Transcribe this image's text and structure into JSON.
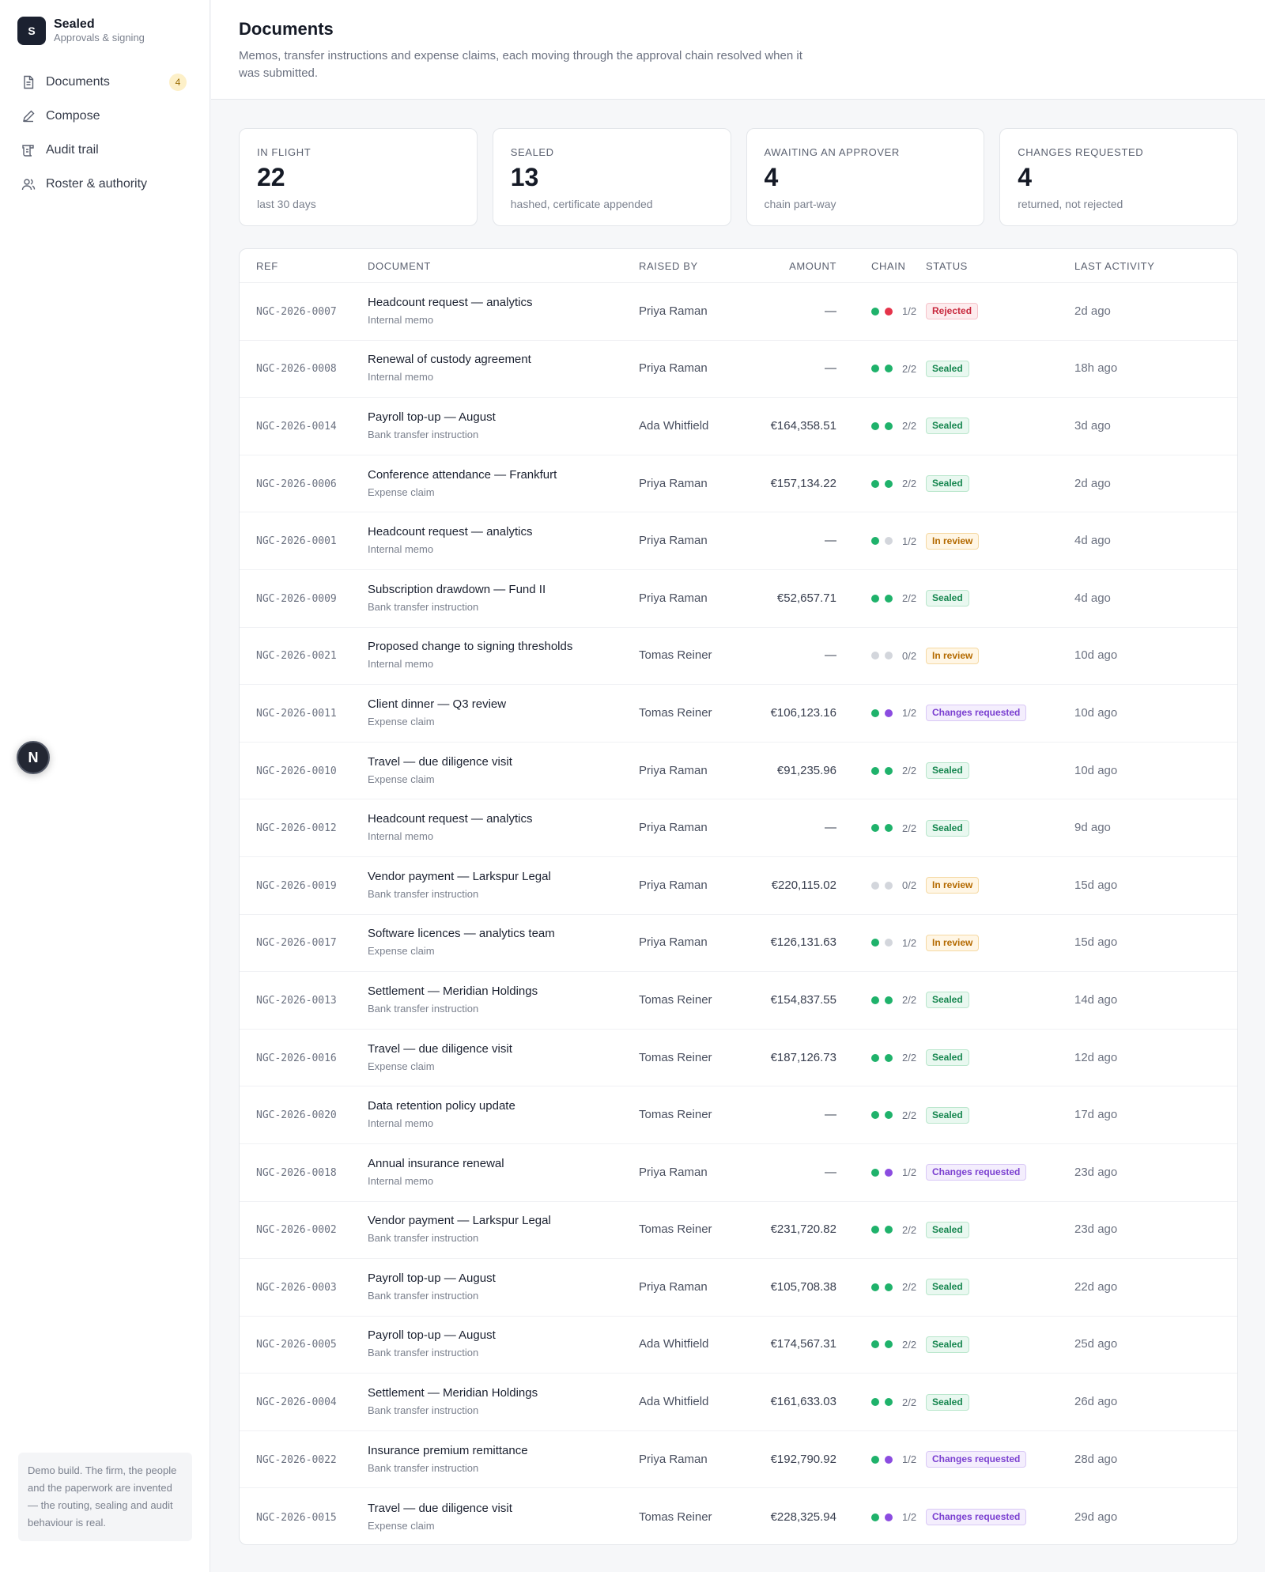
{
  "brand": {
    "logo_letter": "S",
    "name": "Sealed",
    "subtitle": "Approvals & signing"
  },
  "nav": {
    "items": [
      {
        "label": "Documents",
        "icon": "document-icon",
        "badge": "4"
      },
      {
        "label": "Compose",
        "icon": "pen-icon"
      },
      {
        "label": "Audit trail",
        "icon": "scroll-icon"
      },
      {
        "label": "Roster & authority",
        "icon": "users-icon"
      }
    ]
  },
  "avatar_letter": "N",
  "demo_note": "Demo build. The firm, the people and the paperwork are invented — the routing, sealing and audit behaviour is real.",
  "header": {
    "title": "Documents",
    "description": "Memos, transfer instructions and expense claims, each moving through the approval chain resolved when it was submitted."
  },
  "stats": [
    {
      "label": "IN FLIGHT",
      "value": "22",
      "sub": "last 30 days"
    },
    {
      "label": "SEALED",
      "value": "13",
      "sub": "hashed, certificate appended"
    },
    {
      "label": "AWAITING AN APPROVER",
      "value": "4",
      "sub": "chain part-way"
    },
    {
      "label": "CHANGES REQUESTED",
      "value": "4",
      "sub": "returned, not rejected"
    }
  ],
  "colors": {
    "dot_green": "#1fb26b",
    "dot_red": "#e5334a",
    "dot_grey": "#d3d6dc",
    "dot_purple": "#8b4ce0",
    "status_rejected": {
      "fg": "#c8283d",
      "bg": "#fdecee",
      "border": "#f6c3ca"
    },
    "status_sealed": {
      "fg": "#16864f",
      "bg": "#e9f8f0",
      "border": "#b9e6cc"
    },
    "status_review": {
      "fg": "#b46a00",
      "bg": "#fff6e5",
      "border": "#f5d9a3"
    },
    "status_changes": {
      "fg": "#7a3fd0",
      "bg": "#f4eefd",
      "border": "#d9c8f6"
    }
  },
  "table": {
    "columns": [
      "REF",
      "DOCUMENT",
      "RAISED BY",
      "AMOUNT",
      "CHAIN",
      "STATUS",
      "LAST ACTIVITY"
    ],
    "rows": [
      {
        "ref": "NGC-2026-0007",
        "title": "Headcount request — analytics",
        "type": "Internal memo",
        "by": "Priya Raman",
        "amount": "—",
        "dots": [
          "green",
          "red"
        ],
        "chain": "1/2",
        "status": "Rejected",
        "status_kind": "rejected",
        "last": "2d ago"
      },
      {
        "ref": "NGC-2026-0008",
        "title": "Renewal of custody agreement",
        "type": "Internal memo",
        "by": "Priya Raman",
        "amount": "—",
        "dots": [
          "green",
          "green"
        ],
        "chain": "2/2",
        "status": "Sealed",
        "status_kind": "sealed",
        "last": "18h ago"
      },
      {
        "ref": "NGC-2026-0014",
        "title": "Payroll top-up — August",
        "type": "Bank transfer instruction",
        "by": "Ada Whitfield",
        "amount": "€164,358.51",
        "dots": [
          "green",
          "green"
        ],
        "chain": "2/2",
        "status": "Sealed",
        "status_kind": "sealed",
        "last": "3d ago"
      },
      {
        "ref": "NGC-2026-0006",
        "title": "Conference attendance — Frankfurt",
        "type": "Expense claim",
        "by": "Priya Raman",
        "amount": "€157,134.22",
        "dots": [
          "green",
          "green"
        ],
        "chain": "2/2",
        "status": "Sealed",
        "status_kind": "sealed",
        "last": "2d ago"
      },
      {
        "ref": "NGC-2026-0001",
        "title": "Headcount request — analytics",
        "type": "Internal memo",
        "by": "Priya Raman",
        "amount": "—",
        "dots": [
          "green",
          "grey"
        ],
        "chain": "1/2",
        "status": "In review",
        "status_kind": "review",
        "last": "4d ago"
      },
      {
        "ref": "NGC-2026-0009",
        "title": "Subscription drawdown — Fund II",
        "type": "Bank transfer instruction",
        "by": "Priya Raman",
        "amount": "€52,657.71",
        "dots": [
          "green",
          "green"
        ],
        "chain": "2/2",
        "status": "Sealed",
        "status_kind": "sealed",
        "last": "4d ago"
      },
      {
        "ref": "NGC-2026-0021",
        "title": "Proposed change to signing thresholds",
        "type": "Internal memo",
        "by": "Tomas Reiner",
        "amount": "—",
        "dots": [
          "grey",
          "grey"
        ],
        "chain": "0/2",
        "status": "In review",
        "status_kind": "review",
        "last": "10d ago"
      },
      {
        "ref": "NGC-2026-0011",
        "title": "Client dinner — Q3 review",
        "type": "Expense claim",
        "by": "Tomas Reiner",
        "amount": "€106,123.16",
        "dots": [
          "green",
          "purple"
        ],
        "chain": "1/2",
        "status": "Changes requested",
        "status_kind": "changes",
        "last": "10d ago"
      },
      {
        "ref": "NGC-2026-0010",
        "title": "Travel — due diligence visit",
        "type": "Expense claim",
        "by": "Priya Raman",
        "amount": "€91,235.96",
        "dots": [
          "green",
          "green"
        ],
        "chain": "2/2",
        "status": "Sealed",
        "status_kind": "sealed",
        "last": "10d ago"
      },
      {
        "ref": "NGC-2026-0012",
        "title": "Headcount request — analytics",
        "type": "Internal memo",
        "by": "Priya Raman",
        "amount": "—",
        "dots": [
          "green",
          "green"
        ],
        "chain": "2/2",
        "status": "Sealed",
        "status_kind": "sealed",
        "last": "9d ago"
      },
      {
        "ref": "NGC-2026-0019",
        "title": "Vendor payment — Larkspur Legal",
        "type": "Bank transfer instruction",
        "by": "Priya Raman",
        "amount": "€220,115.02",
        "dots": [
          "grey",
          "grey"
        ],
        "chain": "0/2",
        "status": "In review",
        "status_kind": "review",
        "last": "15d ago"
      },
      {
        "ref": "NGC-2026-0017",
        "title": "Software licences — analytics team",
        "type": "Expense claim",
        "by": "Priya Raman",
        "amount": "€126,131.63",
        "dots": [
          "green",
          "grey"
        ],
        "chain": "1/2",
        "status": "In review",
        "status_kind": "review",
        "last": "15d ago"
      },
      {
        "ref": "NGC-2026-0013",
        "title": "Settlement — Meridian Holdings",
        "type": "Bank transfer instruction",
        "by": "Tomas Reiner",
        "amount": "€154,837.55",
        "dots": [
          "green",
          "green"
        ],
        "chain": "2/2",
        "status": "Sealed",
        "status_kind": "sealed",
        "last": "14d ago"
      },
      {
        "ref": "NGC-2026-0016",
        "title": "Travel — due diligence visit",
        "type": "Expense claim",
        "by": "Tomas Reiner",
        "amount": "€187,126.73",
        "dots": [
          "green",
          "green"
        ],
        "chain": "2/2",
        "status": "Sealed",
        "status_kind": "sealed",
        "last": "12d ago"
      },
      {
        "ref": "NGC-2026-0020",
        "title": "Data retention policy update",
        "type": "Internal memo",
        "by": "Tomas Reiner",
        "amount": "—",
        "dots": [
          "green",
          "green"
        ],
        "chain": "2/2",
        "status": "Sealed",
        "status_kind": "sealed",
        "last": "17d ago"
      },
      {
        "ref": "NGC-2026-0018",
        "title": "Annual insurance renewal",
        "type": "Internal memo",
        "by": "Priya Raman",
        "amount": "—",
        "dots": [
          "green",
          "purple"
        ],
        "chain": "1/2",
        "status": "Changes requested",
        "status_kind": "changes",
        "last": "23d ago"
      },
      {
        "ref": "NGC-2026-0002",
        "title": "Vendor payment — Larkspur Legal",
        "type": "Bank transfer instruction",
        "by": "Tomas Reiner",
        "amount": "€231,720.82",
        "dots": [
          "green",
          "green"
        ],
        "chain": "2/2",
        "status": "Sealed",
        "status_kind": "sealed",
        "last": "23d ago"
      },
      {
        "ref": "NGC-2026-0003",
        "title": "Payroll top-up — August",
        "type": "Bank transfer instruction",
        "by": "Priya Raman",
        "amount": "€105,708.38",
        "dots": [
          "green",
          "green"
        ],
        "chain": "2/2",
        "status": "Sealed",
        "status_kind": "sealed",
        "last": "22d ago"
      },
      {
        "ref": "NGC-2026-0005",
        "title": "Payroll top-up — August",
        "type": "Bank transfer instruction",
        "by": "Ada Whitfield",
        "amount": "€174,567.31",
        "dots": [
          "green",
          "green"
        ],
        "chain": "2/2",
        "status": "Sealed",
        "status_kind": "sealed",
        "last": "25d ago"
      },
      {
        "ref": "NGC-2026-0004",
        "title": "Settlement — Meridian Holdings",
        "type": "Bank transfer instruction",
        "by": "Ada Whitfield",
        "amount": "€161,633.03",
        "dots": [
          "green",
          "green"
        ],
        "chain": "2/2",
        "status": "Sealed",
        "status_kind": "sealed",
        "last": "26d ago"
      },
      {
        "ref": "NGC-2026-0022",
        "title": "Insurance premium remittance",
        "type": "Bank transfer instruction",
        "by": "Priya Raman",
        "amount": "€192,790.92",
        "dots": [
          "green",
          "purple"
        ],
        "chain": "1/2",
        "status": "Changes requested",
        "status_kind": "changes",
        "last": "28d ago"
      },
      {
        "ref": "NGC-2026-0015",
        "title": "Travel — due diligence visit",
        "type": "Expense claim",
        "by": "Tomas Reiner",
        "amount": "€228,325.94",
        "dots": [
          "green",
          "purple"
        ],
        "chain": "1/2",
        "status": "Changes requested",
        "status_kind": "changes",
        "last": "29d ago"
      }
    ]
  }
}
